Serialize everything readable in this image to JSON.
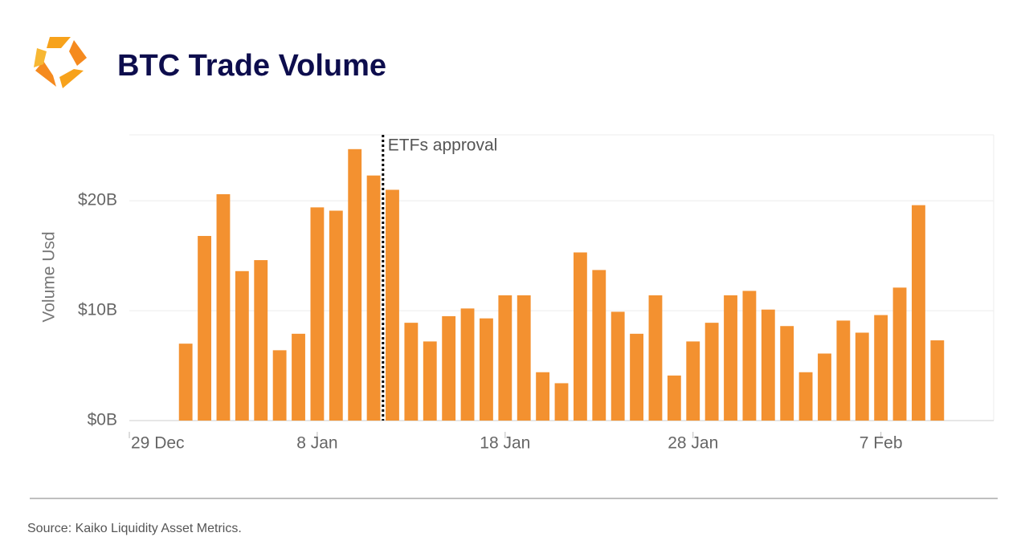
{
  "chart_data": {
    "type": "bar",
    "title": "BTC Trade Volume",
    "y_label": "Volume Usd",
    "source": "Source: Kaiko Liquidity Asset Metrics.",
    "x": [
      "1 Jan",
      "2 Jan",
      "3 Jan",
      "4 Jan",
      "5 Jan",
      "6 Jan",
      "7 Jan",
      "8 Jan",
      "9 Jan",
      "10 Jan",
      "11 Jan",
      "12 Jan",
      "13 Jan",
      "14 Jan",
      "15 Jan",
      "16 Jan",
      "17 Jan",
      "18 Jan",
      "19 Jan",
      "20 Jan",
      "21 Jan",
      "22 Jan",
      "23 Jan",
      "24 Jan",
      "25 Jan",
      "26 Jan",
      "27 Jan",
      "28 Jan",
      "29 Jan",
      "30 Jan",
      "31 Jan",
      "1 Feb",
      "2 Feb",
      "3 Feb",
      "4 Feb",
      "5 Feb",
      "6 Feb",
      "7 Feb",
      "8 Feb",
      "9 Feb",
      "10 Feb"
    ],
    "values": [
      7.0,
      16.8,
      20.6,
      13.6,
      14.6,
      6.4,
      7.9,
      19.4,
      19.1,
      24.7,
      22.3,
      21.0,
      8.9,
      7.2,
      9.5,
      10.2,
      9.3,
      11.4,
      11.4,
      4.4,
      3.4,
      15.3,
      13.7,
      9.9,
      7.9,
      11.4,
      4.1,
      7.2,
      8.9,
      11.4,
      11.8,
      10.1,
      8.6,
      4.4,
      6.1,
      9.1,
      8.0,
      9.6,
      12.1,
      19.6,
      7.3
    ],
    "color": "#f39130",
    "xlim": [
      "29 Dec",
      "13 Feb"
    ],
    "xticks": [
      "29 Dec",
      "8 Jan",
      "18 Jan",
      "28 Jan",
      "7 Feb"
    ],
    "ylim": [
      0,
      26
    ],
    "yticks": [
      {
        "value": 0,
        "label": "$0B"
      },
      {
        "value": 10,
        "label": "$10B"
      },
      {
        "value": 20,
        "label": "$20B"
      }
    ],
    "grid": true,
    "annotation": {
      "text": "ETFs approval",
      "x": "11 Jan"
    }
  }
}
